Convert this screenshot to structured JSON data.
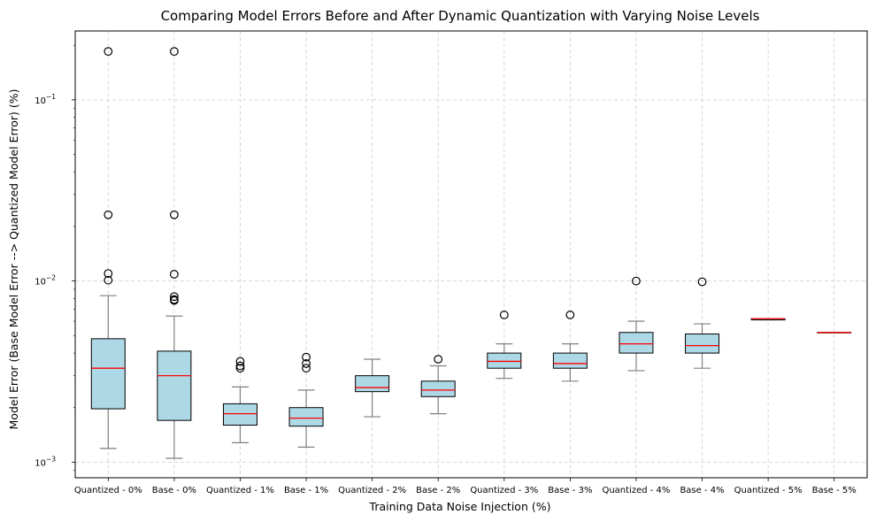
{
  "chart_data": {
    "type": "boxplot",
    "title": "Comparing Model Errors Before and After Dynamic Quantization with Varying Noise Levels",
    "xlabel": "Training Data Noise Injection (%)",
    "ylabel": "Model Error (Base Model Error --> Quantized Model Error) (%)",
    "yscale": "log",
    "ylim": [
      0.00082,
      0.24
    ],
    "yticks": [
      {
        "value": 0.001,
        "base": "10",
        "exp": "−3"
      },
      {
        "value": 0.01,
        "base": "10",
        "exp": "−2"
      },
      {
        "value": 0.1,
        "base": "10",
        "exp": "−1"
      }
    ],
    "grid": true,
    "colors": {
      "box_fill": "#add8e6",
      "median": "#ff0000",
      "whisker": "#808080",
      "grid": "#cccccc"
    },
    "categories": [
      "Quantized - 0%",
      "Base - 0%",
      "Quantized - 1%",
      "Base - 1%",
      "Quantized - 2%",
      "Base - 2%",
      "Quantized - 3%",
      "Base - 3%",
      "Quantized - 4%",
      "Base - 4%",
      "Quantized - 5%",
      "Base - 5%"
    ],
    "boxes": [
      {
        "whislo": 0.00119,
        "q1": 0.00197,
        "med": 0.0033,
        "q3": 0.0048,
        "whishi": 0.0083,
        "fliers": [
          0.185,
          0.0232,
          0.011,
          0.0101
        ]
      },
      {
        "whislo": 0.00105,
        "q1": 0.0017,
        "med": 0.003,
        "q3": 0.0041,
        "whishi": 0.0064,
        "fliers": [
          0.185,
          0.0232,
          0.0109,
          0.0082,
          0.0079,
          0.0078
        ]
      },
      {
        "whislo": 0.00128,
        "q1": 0.0016,
        "med": 0.00185,
        "q3": 0.0021,
        "whishi": 0.0026,
        "fliers": [
          0.0036,
          0.0034,
          0.0033
        ]
      },
      {
        "whislo": 0.00121,
        "q1": 0.00158,
        "med": 0.00175,
        "q3": 0.002,
        "whishi": 0.0025,
        "fliers": [
          0.0038,
          0.0035,
          0.0033
        ]
      },
      {
        "whislo": 0.00178,
        "q1": 0.00245,
        "med": 0.00258,
        "q3": 0.003,
        "whishi": 0.0037,
        "fliers": []
      },
      {
        "whislo": 0.00185,
        "q1": 0.0023,
        "med": 0.0025,
        "q3": 0.0028,
        "whishi": 0.0034,
        "fliers": [
          0.0037
        ]
      },
      {
        "whislo": 0.0029,
        "q1": 0.0033,
        "med": 0.0036,
        "q3": 0.004,
        "whishi": 0.0045,
        "fliers": [
          0.0065
        ]
      },
      {
        "whislo": 0.0028,
        "q1": 0.0033,
        "med": 0.0035,
        "q3": 0.004,
        "whishi": 0.0045,
        "fliers": [
          0.0065
        ]
      },
      {
        "whislo": 0.0032,
        "q1": 0.004,
        "med": 0.0045,
        "q3": 0.0052,
        "whishi": 0.006,
        "fliers": [
          0.01
        ]
      },
      {
        "whislo": 0.0033,
        "q1": 0.004,
        "med": 0.0044,
        "q3": 0.0051,
        "whishi": 0.0058,
        "fliers": [
          0.0099
        ]
      },
      {
        "whislo": 0.0061,
        "q1": 0.0061,
        "med": 0.0062,
        "q3": 0.0062,
        "whishi": 0.0062,
        "fliers": []
      },
      {
        "whislo": 0.0052,
        "q1": 0.0052,
        "med": 0.0052,
        "q3": 0.0052,
        "whishi": 0.0052,
        "fliers": []
      }
    ]
  }
}
